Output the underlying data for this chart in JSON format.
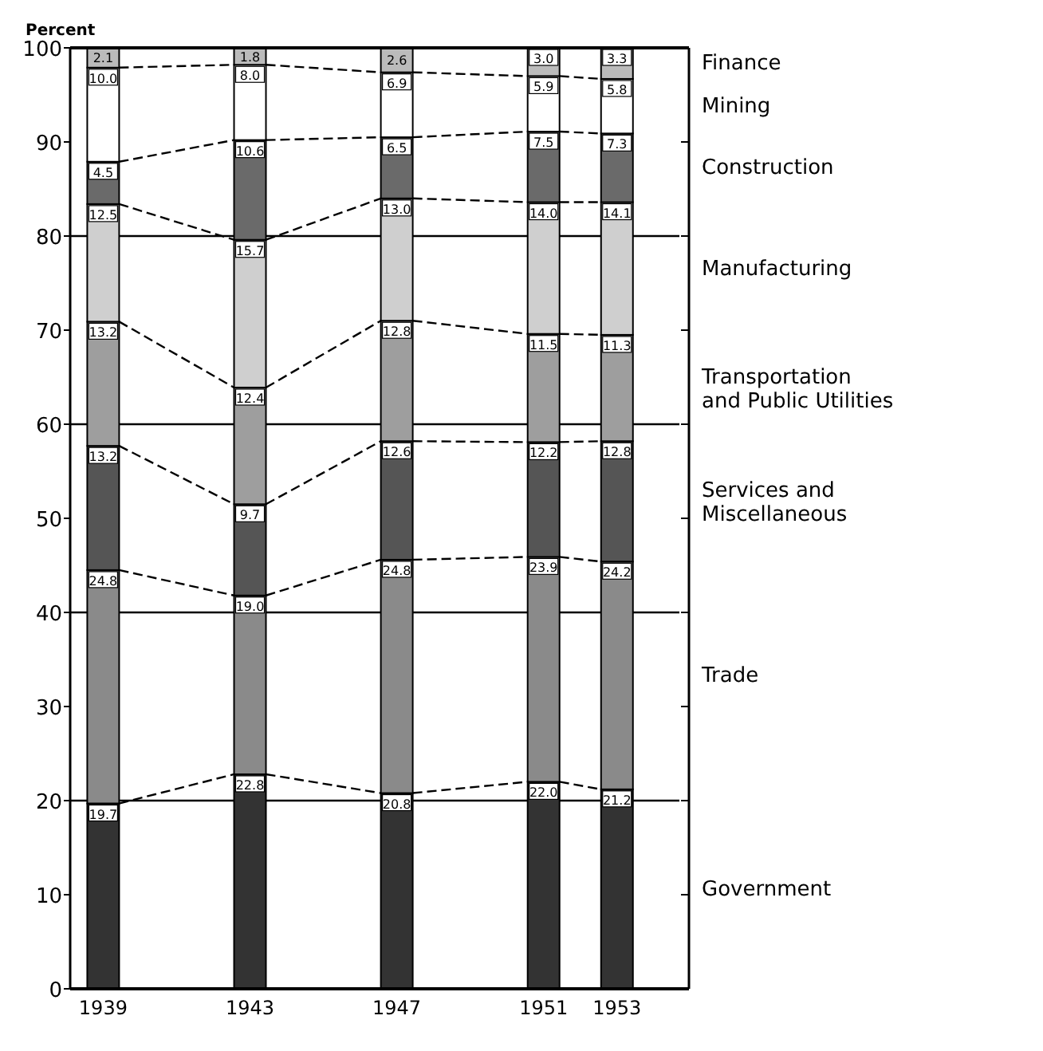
{
  "chart_data": {
    "type": "bar",
    "stacked": true,
    "ylabel": "Percent",
    "x": [
      1939,
      1943,
      1947,
      1951,
      1953
    ],
    "xlim": [
      1938.1,
      1954.7
    ],
    "xticks": [
      1939,
      1943,
      1947,
      1951,
      1953
    ],
    "ylim": [
      0,
      100
    ],
    "yticks": [
      0,
      10,
      20,
      30,
      40,
      50,
      60,
      70,
      80,
      90,
      100
    ],
    "ref_lines": [
      {
        "axis": "y",
        "value": 20
      },
      {
        "axis": "y",
        "value": 40
      },
      {
        "axis": "y",
        "value": 60
      },
      {
        "axis": "y",
        "value": 80
      }
    ],
    "legend": "right",
    "series": [
      {
        "name": "Government",
        "color": "#333333",
        "values": [
          19.7,
          22.8,
          20.8,
          22.0,
          21.2
        ],
        "value_labels": [
          "19.7",
          "22.8",
          "20.8",
          "22.0",
          "21.2"
        ]
      },
      {
        "name": "Trade",
        "color": "#8a8a8a",
        "values": [
          24.8,
          19.0,
          24.8,
          23.9,
          24.2
        ],
        "value_labels": [
          "24.8",
          "19.0",
          "24.8",
          "23.9",
          "24.2"
        ]
      },
      {
        "name": "Services and\nMiscellaneous",
        "color": "#555555",
        "values": [
          13.2,
          9.7,
          12.6,
          12.2,
          12.8
        ],
        "value_labels": [
          "13.2",
          "9.7",
          "12.6",
          "12.2",
          "12.8"
        ]
      },
      {
        "name": "Transportation\nand Public Utilities",
        "color": "#9e9e9e",
        "values": [
          13.2,
          12.4,
          12.8,
          11.5,
          11.3
        ],
        "value_labels": [
          "13.2",
          "12.4",
          "12.8",
          "11.5",
          "11.3"
        ]
      },
      {
        "name": "Manufacturing",
        "color": "#cfcfcf",
        "values": [
          12.5,
          15.7,
          13.0,
          14.0,
          14.1
        ],
        "value_labels": [
          "12.5",
          "15.7",
          "13.0",
          "14.0",
          "14.1"
        ]
      },
      {
        "name": "Construction",
        "color": "#6a6a6a",
        "values": [
          4.5,
          10.6,
          6.5,
          7.5,
          7.3
        ],
        "value_labels": [
          "4.5",
          "10.6",
          "6.5",
          "7.5",
          "7.3"
        ]
      },
      {
        "name": "Mining",
        "color": "#ffffff",
        "values": [
          10.0,
          8.0,
          6.9,
          5.9,
          5.8
        ],
        "value_labels": [
          "10.0",
          "8.0",
          "6.9",
          "5.9",
          "5.8"
        ]
      },
      {
        "name": "Finance",
        "color": "#bbbbbb",
        "values": [
          2.1,
          1.8,
          2.6,
          3.0,
          3.3
        ],
        "value_labels": [
          "2.1",
          "1.8",
          "2.6",
          "3.0",
          "3.3"
        ]
      }
    ]
  }
}
